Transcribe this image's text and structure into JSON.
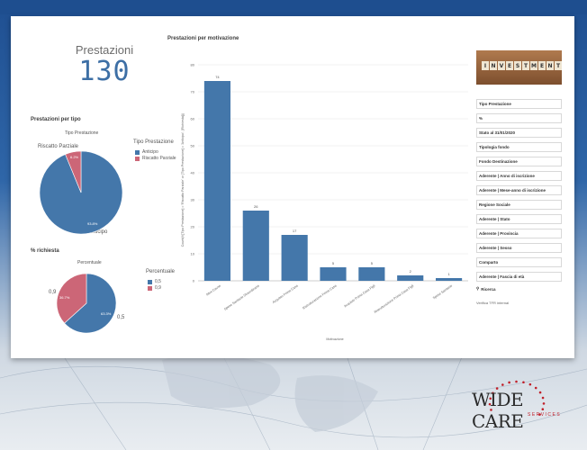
{
  "kpi": {
    "title": "Prestazioni",
    "value": "130"
  },
  "pie_tipo": {
    "section_title": "Prestazioni per tipo",
    "subtitle": "Tipo Prestazione",
    "top_label": "Riscatto Parziale",
    "bottom_label": "Anticipo",
    "legend_title": "Tipo Prestazione",
    "slices": [
      {
        "name": "Anticipo",
        "percent_label": "93.8%",
        "value": 93.8,
        "color": "#4477aa"
      },
      {
        "name": "Riscatto Parziale",
        "percent_label": "6.2%",
        "value": 6.2,
        "color": "#cc6677"
      }
    ]
  },
  "pie_richiesta": {
    "section_title": "% richiesta",
    "subtitle": "Percentuale",
    "left_label": "0,9",
    "right_label": "0,5",
    "legend_title": "Percentuale",
    "slices": [
      {
        "name": "0,5",
        "percent_label": "63.3%",
        "value": 63.3,
        "color": "#4477aa"
      },
      {
        "name": "0,9",
        "percent_label": "36.7%",
        "value": 36.7,
        "color": "#cc6677"
      }
    ]
  },
  "chart_data": {
    "type": "bar",
    "title": "Prestazioni per motivazione",
    "ylabel": "Count(if([Tipo Prestazione] = 'Riscatto Parziale' or [Tipo Prestazione] = 'Anticipo', [Richiesta]))",
    "xlabel": "Motivazione",
    "ylim": [
      0,
      80
    ],
    "yticks": [
      0,
      10,
      20,
      30,
      40,
      50,
      60,
      70,
      80
    ],
    "categories": [
      "Altre Cause",
      "Spese Sanitarie Straordinarie",
      "Acquisto Prima Casa",
      "Ristrutturazione Prima Casa",
      "Acquisto Prima Casa Figli",
      "Ristrutturazione Prima Casa Figli",
      "Spese Sanitarie"
    ],
    "values": [
      74,
      26,
      17,
      5,
      5,
      2,
      1
    ],
    "color": "#4477aa"
  },
  "filters": {
    "image_text": "INVESTMENT",
    "items": [
      "Tipo Prestazione",
      "%",
      "Stato al 31/01/2020",
      "Tipologia fondo",
      "Fondo Destinazione",
      "Aderente | Anno di iscrizione",
      "Aderente | Mese-anno di iscrizione",
      "Regione Sociale",
      "Aderente | Stato",
      "Aderente | Provincia",
      "Aderente | Sesso",
      "Comparto",
      "Aderente | Fascia di età"
    ],
    "search_label": "Ricerca",
    "footer_text": "Verifica TFR internal"
  },
  "logo": {
    "main": "WIDE CARE",
    "sub": "SERVICES",
    "dot_color": "#c0202a"
  }
}
